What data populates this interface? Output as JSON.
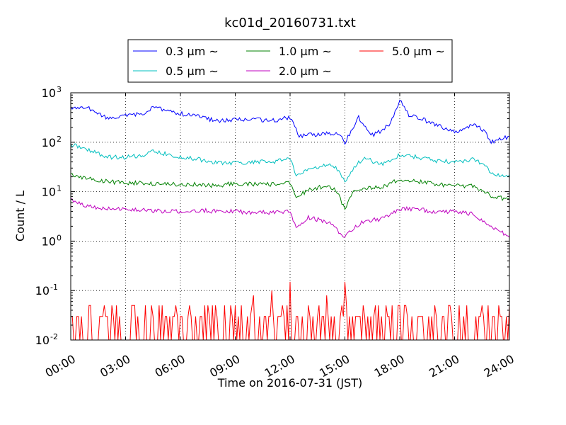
{
  "chart_data": {
    "type": "line",
    "title": "kc01d_20160731.txt",
    "xlabel": "Time on 2016-07-31 (JST)",
    "ylabel": "Count / L",
    "y_scale": "log",
    "ylim": [
      0.01,
      1000
    ],
    "xlim": [
      "00:00",
      "24:00"
    ],
    "grid": true,
    "legend_position": "top-center",
    "x_ticks": [
      "00:00",
      "03:00",
      "06:00",
      "09:00",
      "12:00",
      "15:00",
      "18:00",
      "21:00",
      "24:00"
    ],
    "y_ticks": [
      {
        "value": 0.01,
        "base": "10",
        "exp": "-2"
      },
      {
        "value": 0.1,
        "base": "10",
        "exp": "-1"
      },
      {
        "value": 1,
        "base": "10",
        "exp": "0"
      },
      {
        "value": 10,
        "base": "10",
        "exp": "1"
      },
      {
        "value": 100,
        "base": "10",
        "exp": "2"
      },
      {
        "value": 1000,
        "base": "10",
        "exp": "3"
      }
    ],
    "series": [
      {
        "name": "0.3 μm ~",
        "color": "#0000ff",
        "x": [
          "00:00",
          "01:00",
          "02:00",
          "03:00",
          "04:00",
          "04:30",
          "05:00",
          "06:00",
          "07:00",
          "08:00",
          "09:00",
          "10:00",
          "11:00",
          "12:00",
          "12:30",
          "13:00",
          "14:00",
          "14:40",
          "15:00",
          "15:20",
          "15:45",
          "16:30",
          "17:00",
          "17:30",
          "18:00",
          "18:30",
          "19:00",
          "20:00",
          "21:00",
          "22:00",
          "22:40",
          "23:00",
          "24:00"
        ],
        "values": [
          500,
          480,
          300,
          340,
          380,
          500,
          470,
          380,
          330,
          270,
          290,
          290,
          270,
          320,
          130,
          140,
          150,
          140,
          100,
          170,
          320,
          140,
          170,
          250,
          700,
          360,
          320,
          220,
          160,
          230,
          170,
          100,
          130
        ]
      },
      {
        "name": "0.5 μm ~",
        "color": "#00bfbf",
        "x": [
          "00:00",
          "01:00",
          "02:00",
          "03:00",
          "04:00",
          "04:30",
          "05:00",
          "06:00",
          "07:00",
          "08:00",
          "09:00",
          "10:00",
          "11:00",
          "12:00",
          "12:20",
          "13:00",
          "14:00",
          "14:30",
          "15:00",
          "15:30",
          "16:00",
          "17:00",
          "18:00",
          "19:00",
          "20:00",
          "21:00",
          "22:00",
          "22:40",
          "23:00",
          "24:00"
        ],
        "values": [
          90,
          70,
          50,
          50,
          55,
          65,
          60,
          50,
          45,
          38,
          38,
          40,
          40,
          45,
          22,
          28,
          35,
          30,
          16,
          30,
          48,
          36,
          55,
          50,
          42,
          40,
          45,
          35,
          22,
          22
        ]
      },
      {
        "name": "1.0 μm ~",
        "color": "#008000",
        "x": [
          "00:00",
          "01:00",
          "02:00",
          "03:00",
          "04:00",
          "05:00",
          "06:00",
          "07:00",
          "08:00",
          "09:00",
          "10:00",
          "11:00",
          "12:00",
          "12:20",
          "13:00",
          "14:00",
          "14:30",
          "15:00",
          "15:30",
          "16:00",
          "17:00",
          "18:00",
          "19:00",
          "20:00",
          "21:00",
          "22:00",
          "22:40",
          "23:00",
          "24:00"
        ],
        "values": [
          22,
          18,
          16,
          15,
          15,
          14,
          14,
          14,
          13,
          15,
          14,
          14,
          15,
          7.5,
          11,
          13,
          11,
          4.5,
          11,
          12,
          12,
          18,
          16,
          14,
          13,
          13,
          10,
          8,
          7
        ]
      },
      {
        "name": "2.0 μm ~",
        "color": "#bf00bf",
        "x": [
          "00:00",
          "01:00",
          "02:00",
          "03:00",
          "04:00",
          "05:00",
          "06:00",
          "07:00",
          "08:00",
          "09:00",
          "10:00",
          "11:00",
          "12:00",
          "12:20",
          "13:00",
          "14:00",
          "14:30",
          "15:00",
          "15:30",
          "16:00",
          "17:00",
          "18:00",
          "19:00",
          "20:00",
          "21:00",
          "22:00",
          "23:00",
          "24:00"
        ],
        "values": [
          7,
          5,
          4.5,
          4.5,
          4.2,
          4,
          4,
          4.2,
          4,
          4,
          3.8,
          3.8,
          4,
          1.8,
          3,
          2.5,
          1.8,
          1.2,
          1.8,
          2.5,
          2.8,
          4.5,
          4.5,
          3.8,
          4,
          3.5,
          2,
          1.2
        ]
      },
      {
        "name": "5.0 μm ~",
        "color": "#ff0000",
        "x": [
          "00:00",
          "00:30",
          "01:00",
          "01:30",
          "02:00",
          "02:30",
          "03:00",
          "03:30",
          "04:00",
          "04:30",
          "05:00",
          "05:30",
          "06:00",
          "06:30",
          "07:00",
          "07:30",
          "08:00",
          "08:30",
          "09:00",
          "09:30",
          "10:00",
          "10:30",
          "11:00",
          "11:30",
          "12:00",
          "12:30",
          "13:00",
          "13:30",
          "14:00",
          "14:30",
          "15:00",
          "15:30",
          "16:00",
          "16:30",
          "17:00",
          "17:30",
          "18:00",
          "18:30",
          "19:00",
          "19:30",
          "20:00",
          "20:30",
          "21:00",
          "21:30",
          "22:00",
          "22:30",
          "23:00",
          "23:30",
          "24:00"
        ],
        "values": [
          0.03,
          0.01,
          0.05,
          0.01,
          0.03,
          0.05,
          0.01,
          0.05,
          0.01,
          0.03,
          0.05,
          0.01,
          0.03,
          0.05,
          0.01,
          0.05,
          0.03,
          0.01,
          0.05,
          0.01,
          0.08,
          0.01,
          0.1,
          0.03,
          0.15,
          0.01,
          0.05,
          0.03,
          0.08,
          0.01,
          0.15,
          0.01,
          0.05,
          0.01,
          0.03,
          0.01,
          0.05,
          0.01,
          0.03,
          0.01,
          0.03,
          0.01,
          0.01,
          0.03,
          0.01,
          0.05,
          0.01,
          0.03,
          0.05
        ]
      }
    ]
  }
}
